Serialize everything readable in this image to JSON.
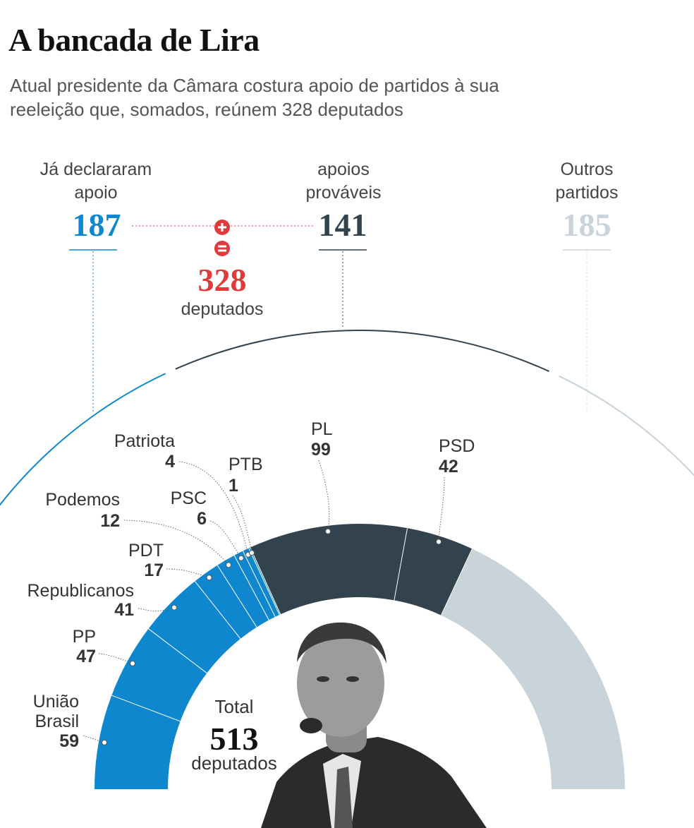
{
  "title": "A bancada de Lira",
  "subtitle": "Atual presidente da Câmara costura apoio de partidos à sua reeleição que, somados, reúnem 328 deputados",
  "colors": {
    "declared": "#0e87cf",
    "probable": "#33434e",
    "others": "#c8d3da",
    "sum": "#e03a3a"
  },
  "groups": {
    "declared": {
      "label": "Já declararam apoio",
      "value": "187"
    },
    "probable": {
      "label": "apoios prováveis",
      "value": "141"
    },
    "others": {
      "label": "Outros partidos",
      "value": "185"
    }
  },
  "sum": {
    "value": "328",
    "label": "deputados",
    "plus_icon": "plus-icon",
    "equals_icon": "equals-icon"
  },
  "total": {
    "label_top": "Total",
    "value": "513",
    "label_bottom": "deputados"
  },
  "photo": {
    "icon": "portrait-photo"
  },
  "chart_data": {
    "type": "pie",
    "total": 513,
    "title": "A bancada de Lira",
    "subtitle": "Atual presidente da Câmara costura apoio de partidos à sua reeleição que, somados, reúnem 328 deputados",
    "categories": [
      "União Brasil",
      "PP",
      "Republicanos",
      "PDT",
      "Podemos",
      "PSC",
      "Patriota",
      "PTB",
      "PL",
      "PSD",
      "Outros partidos"
    ],
    "values": [
      59,
      47,
      41,
      17,
      12,
      6,
      4,
      1,
      99,
      42,
      185
    ],
    "slices": [
      {
        "name": "União Brasil",
        "value": 59,
        "group": "declared"
      },
      {
        "name": "PP",
        "value": 47,
        "group": "declared"
      },
      {
        "name": "Republicanos",
        "value": 41,
        "group": "declared"
      },
      {
        "name": "PDT",
        "value": 17,
        "group": "declared"
      },
      {
        "name": "Podemos",
        "value": 12,
        "group": "declared"
      },
      {
        "name": "PSC",
        "value": 6,
        "group": "declared"
      },
      {
        "name": "Patriota",
        "value": 4,
        "group": "declared"
      },
      {
        "name": "PTB",
        "value": 1,
        "group": "declared"
      },
      {
        "name": "PL",
        "value": 99,
        "group": "probable"
      },
      {
        "name": "PSD",
        "value": 42,
        "group": "probable"
      },
      {
        "name": "Outros partidos",
        "value": 185,
        "group": "others"
      }
    ],
    "groups": [
      {
        "name": "Já declararam apoio",
        "value": 187
      },
      {
        "name": "apoios prováveis",
        "value": 141
      },
      {
        "name": "Outros partidos",
        "value": 185
      }
    ],
    "sum_declared_probable": 328
  }
}
